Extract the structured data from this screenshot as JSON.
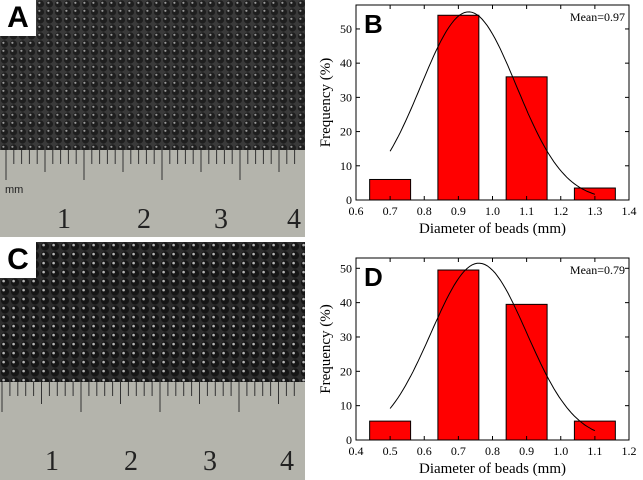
{
  "panels": {
    "photo_a": {
      "letter": "A",
      "ruler_unit": "mm",
      "ruler_numbers": [
        "1",
        "2",
        "3",
        "4"
      ]
    },
    "photo_c": {
      "letter": "C",
      "ruler_unit": "",
      "ruler_numbers": [
        "1",
        "2",
        "3",
        "4"
      ]
    }
  },
  "colors": {
    "bar": "#ff0000",
    "bar_edge": "#000000",
    "curve": "#000000",
    "ruler": "#b0b0a8",
    "beads": "#2a2a2a"
  },
  "chart_data": [
    {
      "type": "bar",
      "panel_letter": "B",
      "annotation": "Mean=0.97",
      "xlabel": "Diameter of beads (mm)",
      "ylabel": "Frequency (%)",
      "xlim": [
        0.6,
        1.4
      ],
      "ylim": [
        0,
        57
      ],
      "xticks": [
        "0.6",
        "0.7",
        "0.8",
        "0.9",
        "1.0",
        "1.1",
        "1.2",
        "1.3",
        "1.4"
      ],
      "yticks": [
        "0",
        "10",
        "20",
        "30",
        "40",
        "50"
      ],
      "bins": [
        {
          "from": 0.64,
          "to": 0.76,
          "value": 6
        },
        {
          "from": 0.84,
          "to": 0.96,
          "value": 54
        },
        {
          "from": 1.04,
          "to": 1.16,
          "value": 36
        },
        {
          "from": 1.24,
          "to": 1.36,
          "value": 3.5
        }
      ],
      "fit_curve": {
        "type": "gaussian",
        "center": 0.93,
        "peak": 55,
        "sigma": 0.14,
        "from": 0.7,
        "to": 1.3
      }
    },
    {
      "type": "bar",
      "panel_letter": "D",
      "annotation": "Mean=0.79",
      "xlabel": "Diameter of beads (mm)",
      "ylabel": "Frequency (%)",
      "xlim": [
        0.4,
        1.2
      ],
      "ylim": [
        0,
        53
      ],
      "xticks": [
        "0.4",
        "0.5",
        "0.6",
        "0.7",
        "0.8",
        "0.9",
        "1.0",
        "1.1",
        "1.2"
      ],
      "yticks": [
        "0",
        "10",
        "20",
        "30",
        "40",
        "50"
      ],
      "bins": [
        {
          "from": 0.44,
          "to": 0.56,
          "value": 5.5
        },
        {
          "from": 0.64,
          "to": 0.76,
          "value": 49.5
        },
        {
          "from": 0.84,
          "to": 0.96,
          "value": 39.5
        },
        {
          "from": 1.04,
          "to": 1.16,
          "value": 5.5
        }
      ],
      "fit_curve": {
        "type": "gaussian",
        "center": 0.76,
        "peak": 51.5,
        "sigma": 0.14,
        "from": 0.5,
        "to": 1.1
      }
    }
  ]
}
